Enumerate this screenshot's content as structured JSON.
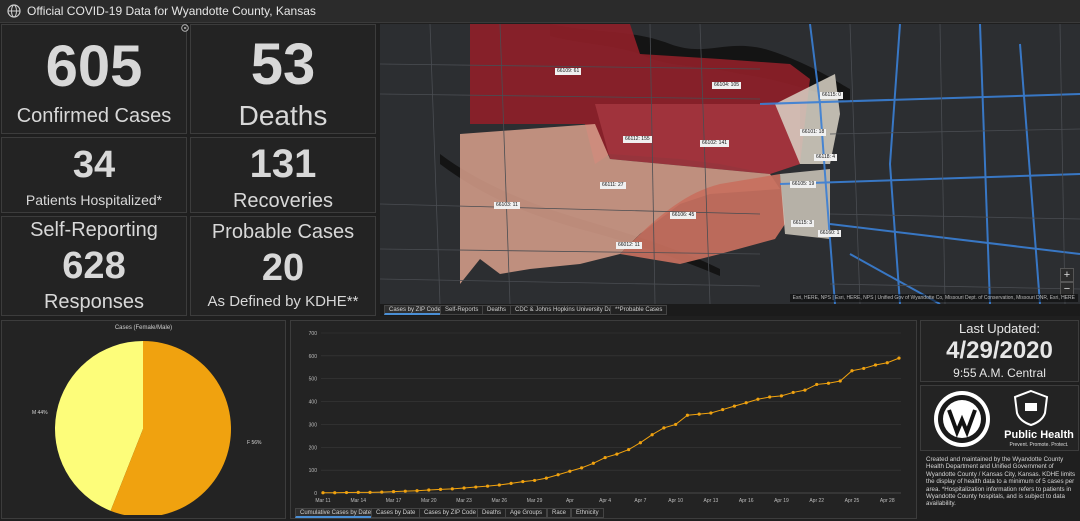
{
  "header": {
    "title": "Official COVID-19 Data for Wyandotte County, Kansas"
  },
  "stats": {
    "confirmed": {
      "value": "605",
      "label": "Confirmed Cases"
    },
    "deaths": {
      "value": "53",
      "label": "Deaths"
    },
    "hospitalized": {
      "value": "34",
      "label": "Patients Hospitalized*"
    },
    "recoveries": {
      "value": "131",
      "label": "Recoveries"
    },
    "self_reporting": {
      "title": "Self-Reporting",
      "value": "628",
      "label": "Responses"
    },
    "probable": {
      "title": "Probable Cases",
      "value": "20",
      "label": "As Defined by KDHE**"
    }
  },
  "map": {
    "tabs": [
      "Cases by ZIP Code",
      "Self-Reports",
      "Deaths",
      "CDC & Johns Hopkins University Data",
      "**Probable Cases"
    ],
    "attribution": "Esri, HERE, NPS | Esri, HERE, NPS | Unified Gov of Wyandotte Co, Missouri Dept. of Conservation, Missouri DNR, Esri, HERE",
    "zip_labels": [
      "66109: 61",
      "66104: 105",
      "66112: 155",
      "66102: 141",
      "66111: 27",
      "66103: 11",
      "66106: 45",
      "66012: 11",
      "66105: 19",
      "66118: 4",
      "66101: 18",
      "66115: 0",
      "66115: 3",
      "66160: 1"
    ],
    "colors": {
      "dark_red": "#8e1f28",
      "red": "#a3353e",
      "peach": "#d9a08c",
      "salmon": "#c8705e",
      "light": "#d9d2c6",
      "roads": "#3a7fd5"
    },
    "zoom_in": "+",
    "zoom_out": "−"
  },
  "pie": {
    "title": "Cases (Female/Male)",
    "label_m": "M 44%",
    "label_f": "F 56%",
    "colors": {
      "male": "#fdfd7a",
      "female": "#f0a20f"
    }
  },
  "chart_tabs": [
    "Cumulative Cases by Date",
    "Cases by Date",
    "Cases by ZIP Code",
    "Deaths",
    "Age Groups",
    "Race",
    "Ethnicity"
  ],
  "chart_data": [
    {
      "type": "pie",
      "title": "Cases (Female/Male)",
      "categories": [
        "M",
        "F"
      ],
      "values": [
        44,
        56
      ],
      "labels": [
        "M 44%",
        "F 56%"
      ]
    },
    {
      "type": "line",
      "title": "",
      "xlabel": "",
      "ylabel": "",
      "ylim": [
        0,
        700
      ],
      "yticks": [
        "0",
        "100",
        "200",
        "300",
        "400",
        "500",
        "600",
        "700"
      ],
      "xticks": [
        "Mar 11",
        "Mar 14",
        "Mar 17",
        "Mar 20",
        "Mar 23",
        "Mar 26",
        "Mar 29",
        "Apr",
        "Apr 4",
        "Apr 7",
        "Apr 10",
        "Apr 13",
        "Apr 16",
        "Apr 19",
        "Apr 22",
        "Apr 25",
        "Apr 28"
      ],
      "grid": true,
      "color": "#f0a20f",
      "series": [
        {
          "x": [
            "Mar 11",
            "Mar 12",
            "Mar 13",
            "Mar 14",
            "Mar 15",
            "Mar 16",
            "Mar 17",
            "Mar 18",
            "Mar 19",
            "Mar 20",
            "Mar 21",
            "Mar 22",
            "Mar 23",
            "Mar 24",
            "Mar 25",
            "Mar 26",
            "Mar 27",
            "Mar 28",
            "Mar 29",
            "Mar 30",
            "Mar 31",
            "Apr 1",
            "Apr 2",
            "Apr 3",
            "Apr 4",
            "Apr 5",
            "Apr 6",
            "Apr 7",
            "Apr 8",
            "Apr 9",
            "Apr 10",
            "Apr 11",
            "Apr 12",
            "Apr 13",
            "Apr 14",
            "Apr 15",
            "Apr 16",
            "Apr 17",
            "Apr 18",
            "Apr 19",
            "Apr 20",
            "Apr 21",
            "Apr 22",
            "Apr 23",
            "Apr 24",
            "Apr 25",
            "Apr 26",
            "Apr 27",
            "Apr 28",
            "Apr 29"
          ],
          "values": [
            1,
            1,
            2,
            3,
            3,
            4,
            6,
            8,
            10,
            13,
            16,
            18,
            22,
            26,
            30,
            35,
            42,
            50,
            55,
            65,
            80,
            95,
            110,
            130,
            155,
            170,
            190,
            220,
            255,
            285,
            300,
            340,
            345,
            350,
            365,
            380,
            395,
            410,
            420,
            425,
            440,
            450,
            475,
            480,
            490,
            535,
            545,
            560,
            570,
            590
          ]
        }
      ]
    }
  ],
  "updated": {
    "title": "Last Updated:",
    "date": "4/29/2020",
    "time": "9:55 A.M. Central"
  },
  "logos": {
    "health_name": "Public Health",
    "health_tagline": "Prevent. Promote. Protect."
  },
  "note": "Created and maintained by the Wyandotte County Health Department and Unified Government of Wyandotte County / Kansas City, Kansas. KDHE limits the display of health data to a minimum of 5 cases per area. *Hospitalization information refers to patients in Wyandotte County hospitals, and is subject to data availability."
}
